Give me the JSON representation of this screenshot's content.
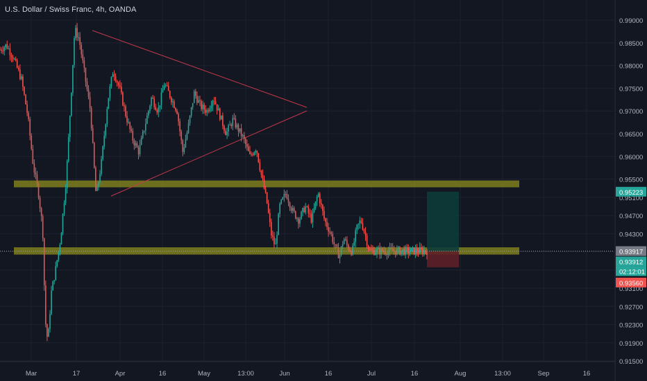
{
  "header": {
    "title": "U.S. Dollar / Swiss Franc, 4h, OANDA"
  },
  "colors": {
    "background": "#131722",
    "grid": "#1e2230",
    "up": "#26a69a",
    "down": "#ef5350",
    "zone": "#8c8c1e",
    "triangle": "#c2374a",
    "target": "#0d3b3a",
    "stop": "#5e1f27",
    "axis_text": "#b2b5be",
    "last_price_badge": "#787b86",
    "target_badge": "#26a69a",
    "stop_badge": "#ef5350"
  },
  "chart_data": {
    "type": "candlestick",
    "symbol": "U.S. Dollar / Swiss Franc",
    "interval": "4h",
    "source": "OANDA",
    "ylim": [
      0.9145,
      0.9915
    ],
    "y_ticks": [
      "0.99000",
      "0.98500",
      "0.98000",
      "0.97500",
      "0.97000",
      "0.96500",
      "0.96000",
      "0.95500",
      "0.95100",
      "0.94700",
      "0.94300",
      "0.93900",
      "0.93500",
      "0.93100",
      "0.92700",
      "0.92300",
      "0.91900",
      "0.91500"
    ],
    "x_labels": [
      "Mar",
      "17",
      "Apr",
      "16",
      "May",
      "13:00",
      "Jun",
      "16",
      "Jul",
      "16",
      "Aug",
      "13:00",
      "Sep",
      "16"
    ],
    "price_path": [
      [
        0,
        0.9835
      ],
      [
        0.015,
        0.9845
      ],
      [
        0.03,
        0.982
      ],
      [
        0.05,
        0.977
      ],
      [
        0.065,
        0.969
      ],
      [
        0.078,
        0.958
      ],
      [
        0.09,
        0.952
      ],
      [
        0.1,
        0.944
      ],
      [
        0.106,
        0.924
      ],
      [
        0.112,
        0.919
      ],
      [
        0.12,
        0.93
      ],
      [
        0.13,
        0.935
      ],
      [
        0.142,
        0.942
      ],
      [
        0.155,
        0.955
      ],
      [
        0.165,
        0.971
      ],
      [
        0.175,
        0.988
      ],
      [
        0.185,
        0.986
      ],
      [
        0.2,
        0.977
      ],
      [
        0.212,
        0.97
      ],
      [
        0.225,
        0.951
      ],
      [
        0.238,
        0.959
      ],
      [
        0.252,
        0.972
      ],
      [
        0.265,
        0.979
      ],
      [
        0.28,
        0.975
      ],
      [
        0.295,
        0.969
      ],
      [
        0.31,
        0.964
      ],
      [
        0.325,
        0.961
      ],
      [
        0.34,
        0.967
      ],
      [
        0.355,
        0.973
      ],
      [
        0.37,
        0.97
      ],
      [
        0.385,
        0.976
      ],
      [
        0.4,
        0.973
      ],
      [
        0.415,
        0.97
      ],
      [
        0.428,
        0.961
      ],
      [
        0.44,
        0.966
      ],
      [
        0.455,
        0.974
      ],
      [
        0.47,
        0.971
      ],
      [
        0.485,
        0.97
      ],
      [
        0.5,
        0.973
      ],
      [
        0.515,
        0.969
      ],
      [
        0.53,
        0.965
      ],
      [
        0.545,
        0.968
      ],
      [
        0.558,
        0.966
      ],
      [
        0.57,
        0.964
      ],
      [
        0.585,
        0.96
      ],
      [
        0.6,
        0.962
      ],
      [
        0.612,
        0.956
      ],
      [
        0.625,
        0.95
      ],
      [
        0.635,
        0.943
      ],
      [
        0.645,
        0.94
      ],
      [
        0.655,
        0.949
      ],
      [
        0.67,
        0.952
      ],
      [
        0.685,
        0.948
      ],
      [
        0.7,
        0.946
      ],
      [
        0.715,
        0.949
      ],
      [
        0.73,
        0.946
      ],
      [
        0.745,
        0.952
      ],
      [
        0.76,
        0.946
      ],
      [
        0.775,
        0.943
      ],
      [
        0.785,
        0.94
      ],
      [
        0.795,
        0.938
      ],
      [
        0.805,
        0.942
      ],
      [
        0.815,
        0.94
      ],
      [
        0.825,
        0.939
      ],
      [
        0.835,
        0.944
      ],
      [
        0.845,
        0.946
      ],
      [
        0.855,
        0.943
      ],
      [
        0.865,
        0.9392
      ]
    ],
    "triangle": [
      [
        0.9895,
        0.9705
      ],
      [
        0.9505,
        0.969
      ]
    ],
    "zones": [
      {
        "from": 0.9547,
        "to": 0.9532
      },
      {
        "from": 0.94,
        "to": 0.9384
      }
    ],
    "position": {
      "entry": 0.93912,
      "target": 0.95223,
      "stop": 0.9356
    },
    "last_price": 0.93917
  },
  "price_axis": {
    "last_price_label": "0.93917",
    "entry_label": "0.93912",
    "countdown_label": "02:12:01",
    "target_label": "0.95223",
    "stop_label": "0.93560"
  }
}
